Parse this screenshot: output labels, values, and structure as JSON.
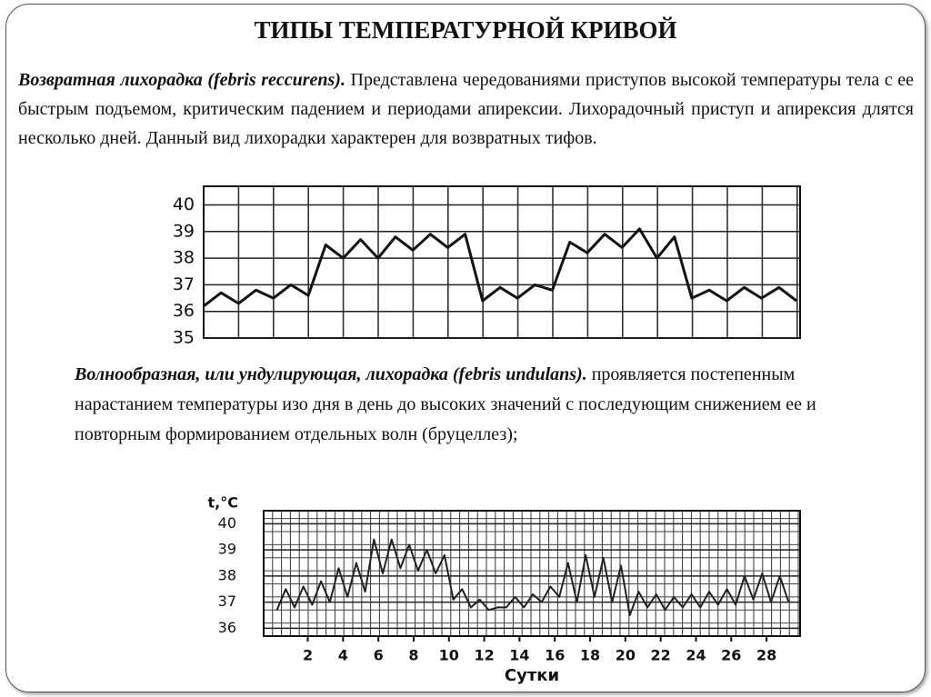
{
  "title": "ТИПЫ ТЕМПЕРАТУРНОЙ КРИВОЙ",
  "paragraphs": [
    {
      "lead": "Возвратная лихорадка (febris reccurens).",
      "text": "Представлена чередованиями приступов высокой температуры тела с ее быстрым подъемом, критическим падением и периодами апирексии. Лихорадочный приступ и апирексия длятся несколько дней. Данный вид лихорадки характерен для возвратных тифов."
    },
    {
      "lead": "Волнообразная, или ундулирующая, лихорадка (febris undulans).",
      "text": "проявляется постепенным нарастанием температуры изо дня в день до высоких значений с последующим снижением ее и повторным формированием отдельных волн (бруцеллез);"
    }
  ],
  "chart_data": [
    {
      "type": "line",
      "color": "#111111",
      "grid": true,
      "values": [
        36.2,
        36.7,
        36.3,
        36.8,
        36.5,
        37.0,
        36.6,
        38.5,
        38.0,
        38.7,
        38.0,
        38.8,
        38.3,
        38.9,
        38.4,
        38.9,
        36.4,
        36.9,
        36.5,
        37.0,
        36.8,
        38.6,
        38.2,
        38.9,
        38.4,
        39.1,
        38.0,
        38.8,
        36.5,
        36.8,
        36.4,
        36.9,
        36.5,
        36.9,
        36.4
      ],
      "ylim": [
        35,
        40.7
      ],
      "yticks": [
        35,
        36,
        37,
        38,
        39,
        40
      ]
    },
    {
      "type": "line",
      "color": "#222222",
      "grid": true,
      "ylabel": "t,°C",
      "xlabel": "Сутки",
      "x": [
        0.25,
        0.75,
        1.25,
        1.75,
        2.25,
        2.75,
        3.25,
        3.75,
        4.25,
        4.75,
        5.25,
        5.75,
        6.25,
        6.75,
        7.25,
        7.75,
        8.25,
        8.75,
        9.25,
        9.75,
        10.25,
        10.75,
        11.25,
        11.75,
        12.25,
        12.75,
        13.25,
        13.75,
        14.25,
        14.75,
        15.25,
        15.75,
        16.25,
        16.75,
        17.25,
        17.75,
        18.25,
        18.75,
        19.25,
        19.75,
        20.25,
        20.75,
        21.25,
        21.75,
        22.25,
        22.75,
        23.25,
        23.75,
        24.25,
        24.75,
        25.25,
        25.75,
        26.25,
        26.75,
        27.25,
        27.75,
        28.25,
        28.75,
        29.25
      ],
      "values": [
        36.7,
        37.5,
        36.8,
        37.6,
        36.9,
        37.8,
        37.0,
        38.3,
        37.2,
        38.5,
        37.4,
        39.4,
        38.1,
        39.4,
        38.3,
        39.2,
        38.2,
        39.0,
        38.1,
        38.8,
        37.1,
        37.5,
        36.8,
        37.1,
        36.7,
        36.8,
        36.8,
        37.2,
        36.8,
        37.3,
        37.0,
        37.6,
        37.2,
        38.5,
        37.0,
        38.8,
        37.2,
        38.7,
        37.0,
        38.4,
        36.5,
        37.4,
        36.8,
        37.3,
        36.7,
        37.2,
        36.8,
        37.3,
        36.8,
        37.4,
        36.9,
        37.5,
        36.9,
        38.0,
        37.1,
        38.1,
        37.0,
        38.0,
        37.0
      ],
      "xlim": [
        -0.5,
        29.9
      ],
      "xticks": [
        2,
        4,
        6,
        8,
        10,
        12,
        14,
        16,
        18,
        20,
        22,
        24,
        26,
        28
      ],
      "ylim": [
        35.7,
        40.5
      ],
      "yticks": [
        36,
        37,
        38,
        39,
        40
      ]
    }
  ]
}
